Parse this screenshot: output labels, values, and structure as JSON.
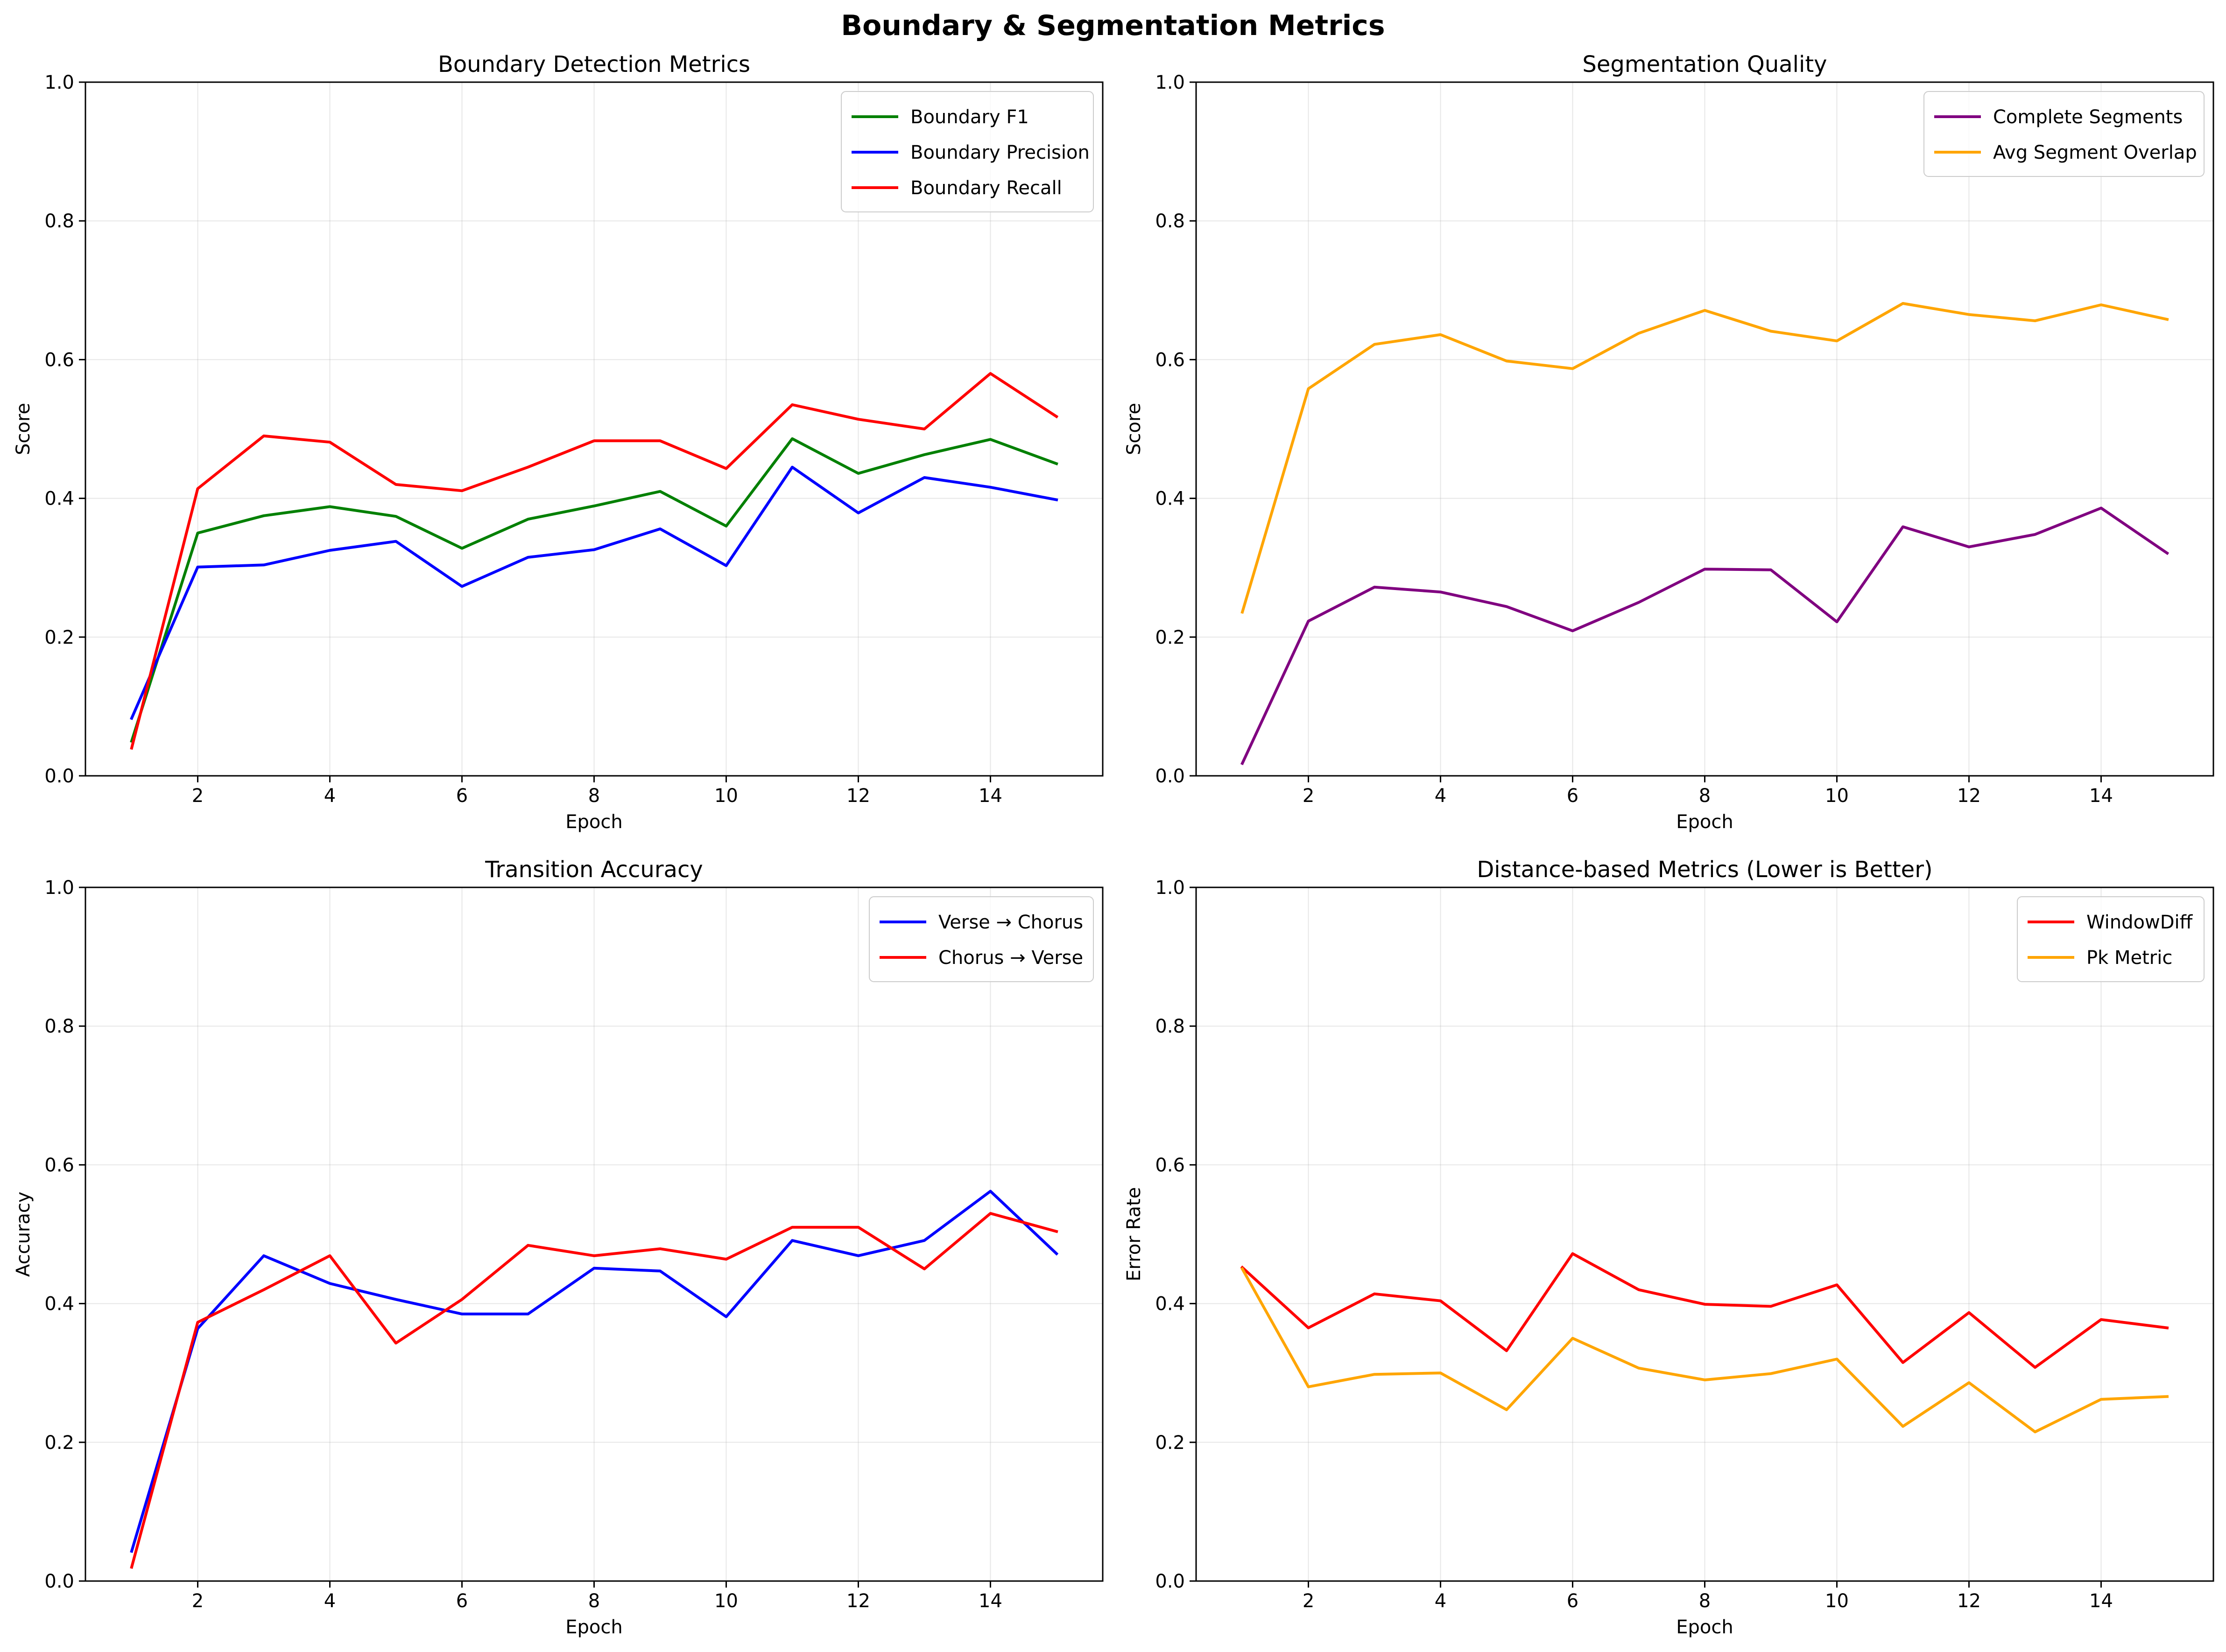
{
  "figure": {
    "title": "Boundary & Segmentation Metrics"
  },
  "chart_data": [
    {
      "type": "line",
      "title": "Boundary Detection Metrics",
      "xlabel": "Epoch",
      "ylabel": "Score",
      "xlim": [
        0.3,
        15.7
      ],
      "ylim": [
        0,
        1.0
      ],
      "xticks": [
        2,
        4,
        6,
        8,
        10,
        12,
        14
      ],
      "yticks": [
        0.0,
        0.2,
        0.4,
        0.6,
        0.8,
        1.0
      ],
      "grid": true,
      "legend": "top-right",
      "x": [
        1,
        2,
        3,
        4,
        5,
        6,
        7,
        8,
        9,
        10,
        11,
        12,
        13,
        14,
        15
      ],
      "series": [
        {
          "name": "Boundary F1",
          "color": "#008000",
          "values": [
            0.05,
            0.35,
            0.375,
            0.388,
            0.374,
            0.328,
            0.37,
            0.389,
            0.41,
            0.36,
            0.486,
            0.436,
            0.463,
            0.485,
            0.45
          ]
        },
        {
          "name": "Boundary Precision",
          "color": "#0000ff",
          "values": [
            0.083,
            0.301,
            0.304,
            0.325,
            0.338,
            0.273,
            0.315,
            0.326,
            0.356,
            0.303,
            0.445,
            0.379,
            0.43,
            0.416,
            0.398
          ]
        },
        {
          "name": "Boundary Recall",
          "color": "#ff0000",
          "values": [
            0.04,
            0.414,
            0.49,
            0.481,
            0.42,
            0.411,
            0.445,
            0.483,
            0.483,
            0.443,
            0.535,
            0.514,
            0.5,
            0.58,
            0.518
          ]
        }
      ]
    },
    {
      "type": "line",
      "title": "Segmentation Quality",
      "xlabel": "Epoch",
      "ylabel": "Score",
      "xlim": [
        0.3,
        15.7
      ],
      "ylim": [
        0,
        1.0
      ],
      "xticks": [
        2,
        4,
        6,
        8,
        10,
        12,
        14
      ],
      "yticks": [
        0.0,
        0.2,
        0.4,
        0.6,
        0.8,
        1.0
      ],
      "grid": true,
      "legend": "top-right",
      "x": [
        1,
        2,
        3,
        4,
        5,
        6,
        7,
        8,
        9,
        10,
        11,
        12,
        13,
        14,
        15
      ],
      "series": [
        {
          "name": "Complete Segments",
          "color": "#800080",
          "values": [
            0.018,
            0.223,
            0.272,
            0.265,
            0.244,
            0.209,
            0.25,
            0.298,
            0.297,
            0.222,
            0.359,
            0.33,
            0.348,
            0.386,
            0.321
          ]
        },
        {
          "name": "Avg Segment Overlap",
          "color": "#ffa500",
          "values": [
            0.236,
            0.558,
            0.622,
            0.636,
            0.598,
            0.587,
            0.638,
            0.671,
            0.641,
            0.627,
            0.681,
            0.665,
            0.656,
            0.679,
            0.658
          ]
        }
      ]
    },
    {
      "type": "line",
      "title": "Transition Accuracy",
      "xlabel": "Epoch",
      "ylabel": "Accuracy",
      "xlim": [
        0.3,
        15.7
      ],
      "ylim": [
        0,
        1.0
      ],
      "xticks": [
        2,
        4,
        6,
        8,
        10,
        12,
        14
      ],
      "yticks": [
        0.0,
        0.2,
        0.4,
        0.6,
        0.8,
        1.0
      ],
      "grid": true,
      "legend": "top-right",
      "x": [
        1,
        2,
        3,
        4,
        5,
        6,
        7,
        8,
        9,
        10,
        11,
        12,
        13,
        14,
        15
      ],
      "series": [
        {
          "name": "Verse → Chorus",
          "color": "#0000ff",
          "values": [
            0.043,
            0.364,
            0.469,
            0.429,
            0.406,
            0.385,
            0.385,
            0.451,
            0.447,
            0.381,
            0.491,
            0.469,
            0.491,
            0.562,
            0.472
          ]
        },
        {
          "name": "Chorus → Verse",
          "color": "#ff0000",
          "values": [
            0.02,
            0.373,
            0.42,
            0.469,
            0.343,
            0.406,
            0.484,
            0.469,
            0.479,
            0.464,
            0.51,
            0.51,
            0.45,
            0.53,
            0.504
          ]
        }
      ]
    },
    {
      "type": "line",
      "title": "Distance-based Metrics (Lower is Better)",
      "xlabel": "Epoch",
      "ylabel": "Error Rate",
      "xlim": [
        0.3,
        15.7
      ],
      "ylim": [
        0,
        1.0
      ],
      "xticks": [
        2,
        4,
        6,
        8,
        10,
        12,
        14
      ],
      "yticks": [
        0.0,
        0.2,
        0.4,
        0.6,
        0.8,
        1.0
      ],
      "grid": true,
      "legend": "top-right",
      "x": [
        1,
        2,
        3,
        4,
        5,
        6,
        7,
        8,
        9,
        10,
        11,
        12,
        13,
        14,
        15
      ],
      "series": [
        {
          "name": "WindowDiff",
          "color": "#ff0000",
          "values": [
            0.452,
            0.365,
            0.414,
            0.404,
            0.332,
            0.472,
            0.42,
            0.399,
            0.396,
            0.427,
            0.315,
            0.387,
            0.308,
            0.377,
            0.365
          ]
        },
        {
          "name": "Pk Metric",
          "color": "#ffa500",
          "values": [
            0.45,
            0.28,
            0.298,
            0.3,
            0.247,
            0.35,
            0.307,
            0.29,
            0.299,
            0.32,
            0.223,
            0.286,
            0.215,
            0.262,
            0.266
          ]
        }
      ]
    }
  ]
}
